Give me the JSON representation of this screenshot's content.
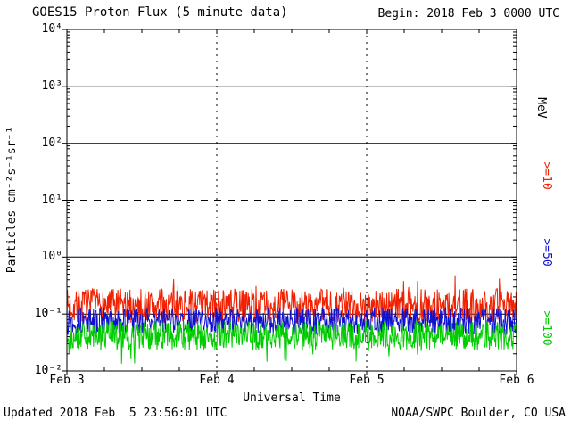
{
  "header": {
    "title": "GOES15 Proton Flux (5 minute data)",
    "begin_label": "Begin: 2018 Feb 3 0000 UTC"
  },
  "footer": {
    "updated": "Updated 2018 Feb  5 23:56:01 UTC",
    "credit": "NOAA/SWPC Boulder, CO USA"
  },
  "chart_data": {
    "type": "line",
    "title": "GOES15 Proton Flux (5 minute data)",
    "xlabel": "Universal Time",
    "ylabel": "Particles cm⁻²s⁻¹sr⁻¹",
    "y_scale": "log",
    "ylim": [
      0.01,
      10000
    ],
    "x_start": "2018 Feb 3 0000 UTC",
    "x_end": "2018 Feb 6 0000 UTC",
    "x_ticks": [
      "Feb 3",
      "Feb 4",
      "Feb 5",
      "Feb 6"
    ],
    "y_ticks": [
      {
        "label": "10⁴",
        "value": 10000
      },
      {
        "label": "10³",
        "value": 1000
      },
      {
        "label": "10²",
        "value": 100
      },
      {
        "label": "10¹",
        "value": 10
      },
      {
        "label": "10⁰",
        "value": 1
      },
      {
        "label": "10⁻¹",
        "value": 0.1
      },
      {
        "label": "10⁻²",
        "value": 0.01
      }
    ],
    "gridlines": {
      "horizontal": [
        {
          "y": 1000,
          "style": "solid"
        },
        {
          "y": 100,
          "style": "solid"
        },
        {
          "y": 10,
          "style": "dashed"
        },
        {
          "y": 1,
          "style": "solid"
        },
        {
          "y": 0.1,
          "style": "solid"
        }
      ],
      "vertical": [
        {
          "label": "Feb 4",
          "x_frac": 0.33333,
          "style": "dashed"
        },
        {
          "label": "Feb 5",
          "x_frac": 0.66667,
          "style": "dashed"
        }
      ]
    },
    "right_axis_labels": [
      {
        "text": "MeV",
        "color": "#000000"
      },
      {
        "text": ">=10",
        "color": "#f02000"
      },
      {
        "text": ">=50",
        "color": "#1010d0"
      },
      {
        "text": ">=100",
        "color": "#00cc00"
      }
    ],
    "series": [
      {
        "name": ">=10 MeV",
        "color": "#f02000",
        "approx_median": 0.14,
        "approx_range": [
          0.07,
          0.3
        ],
        "log_halfwidth": 0.3,
        "spike_dir": 1,
        "seed": 7,
        "n_points": 864
      },
      {
        "name": ">=50 MeV",
        "color": "#1010d0",
        "approx_median": 0.075,
        "approx_range": [
          0.045,
          0.13
        ],
        "log_halfwidth": 0.24,
        "spike_dir": 0,
        "seed": 13,
        "n_points": 864
      },
      {
        "name": ">=100 MeV",
        "color": "#00cc00",
        "approx_median": 0.042,
        "approx_range": [
          0.02,
          0.075
        ],
        "log_halfwidth": 0.26,
        "spike_dir": -1,
        "seed": 29,
        "n_points": 864
      }
    ],
    "frame_color": "#000000",
    "background": "#ffffff",
    "legend_position": "right-rotated"
  }
}
